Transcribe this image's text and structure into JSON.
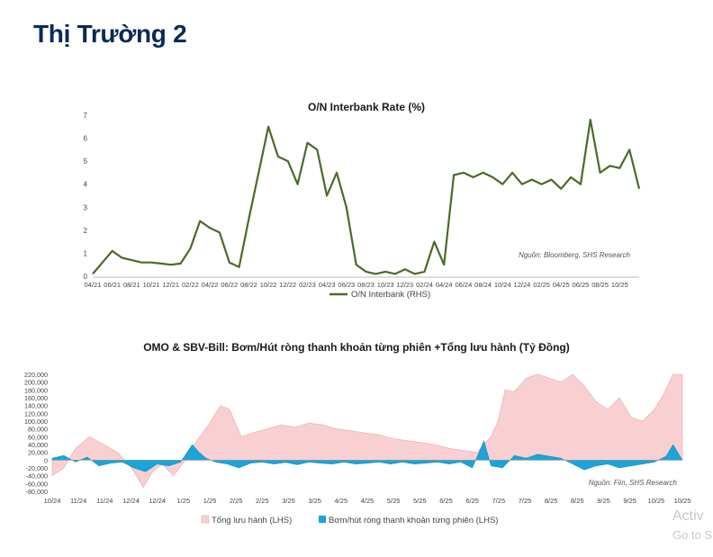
{
  "page": {
    "title": "Thị Trường 2"
  },
  "watermark": {
    "line1": "Activ",
    "line2": "Go to S"
  },
  "chart_data": [
    {
      "type": "line",
      "title": "O/N Interbank Rate (%)",
      "source": "Nguồn: Bloomberg, SHS Research",
      "ylim": [
        0,
        7
      ],
      "yticks": [
        "0",
        "1",
        "2",
        "3",
        "4",
        "5",
        "6",
        "7"
      ],
      "xlim": [
        0,
        56
      ],
      "x_tick_labels": [
        "04/21",
        "06/21",
        "08/21",
        "10/21",
        "12/21",
        "02/22",
        "04/22",
        "06/22",
        "08/22",
        "10/22",
        "12/22",
        "02/23",
        "04/23",
        "06/23",
        "08/23",
        "10/23",
        "12/23",
        "02/24",
        "04/24",
        "06/24",
        "08/24",
        "10/24",
        "12/24",
        "02/25",
        "04/25",
        "06/25",
        "08/25",
        "10/25"
      ],
      "x_tick_positions": [
        0,
        2,
        4,
        6,
        8,
        10,
        12,
        14,
        16,
        18,
        20,
        22,
        24,
        26,
        28,
        30,
        32,
        34,
        36,
        38,
        40,
        42,
        44,
        46,
        48,
        50,
        52,
        54
      ],
      "series": [
        {
          "name": "O/N Interbank (RHS)",
          "color": "#4a6b2a",
          "points": [
            [
              0,
              0.1
            ],
            [
              1,
              0.6
            ],
            [
              2,
              1.1
            ],
            [
              3,
              0.8
            ],
            [
              4,
              0.7
            ],
            [
              5,
              0.6
            ],
            [
              6,
              0.6
            ],
            [
              7,
              0.55
            ],
            [
              8,
              0.5
            ],
            [
              9,
              0.55
            ],
            [
              10,
              1.2
            ],
            [
              11,
              2.4
            ],
            [
              12,
              2.1
            ],
            [
              13,
              1.9
            ],
            [
              14,
              0.6
            ],
            [
              15,
              0.4
            ],
            [
              16,
              2.5
            ],
            [
              17,
              4.5
            ],
            [
              18,
              6.5
            ],
            [
              19,
              5.2
            ],
            [
              20,
              5.0
            ],
            [
              21,
              4.0
            ],
            [
              22,
              5.8
            ],
            [
              23,
              5.5
            ],
            [
              24,
              3.5
            ],
            [
              25,
              4.5
            ],
            [
              26,
              3.0
            ],
            [
              27,
              0.5
            ],
            [
              28,
              0.2
            ],
            [
              29,
              0.1
            ],
            [
              30,
              0.2
            ],
            [
              31,
              0.1
            ],
            [
              32,
              0.3
            ],
            [
              33,
              0.1
            ],
            [
              34,
              0.2
            ],
            [
              35,
              1.5
            ],
            [
              36,
              0.5
            ],
            [
              37,
              4.4
            ],
            [
              38,
              4.5
            ],
            [
              39,
              4.3
            ],
            [
              40,
              4.5
            ],
            [
              41,
              4.3
            ],
            [
              42,
              4.0
            ],
            [
              43,
              4.5
            ],
            [
              44,
              4.0
            ],
            [
              45,
              4.2
            ],
            [
              46,
              4.0
            ],
            [
              47,
              4.2
            ],
            [
              48,
              3.8
            ],
            [
              49,
              4.3
            ],
            [
              50,
              4.0
            ],
            [
              51,
              6.8
            ],
            [
              52,
              4.5
            ],
            [
              53,
              4.8
            ],
            [
              54,
              4.7
            ],
            [
              55,
              5.5
            ],
            [
              56,
              3.8
            ]
          ]
        }
      ]
    },
    {
      "type": "area",
      "title": "OMO & SBV-Bill: Bơm/Hút ròng thanh khoản từng phiên +Tổng lưu hành (Tỷ Đồng)",
      "source": "Nguồn: Fiin, SHS Research",
      "ylim": [
        -80000,
        220000
      ],
      "yticks": [
        "-80,000",
        "-60,000",
        "-40,000",
        "-20,000",
        "0",
        "20,000",
        "40,000",
        "60,000",
        "80,000",
        "100,000",
        "120,000",
        "140,000",
        "160,000",
        "180,000",
        "200,000",
        "220,000"
      ],
      "xlim": [
        0,
        27
      ],
      "x_tick_labels": [
        "10/24",
        "11/24",
        "11/24",
        "12/24",
        "12/24",
        "1/25",
        "1/25",
        "2/25",
        "2/25",
        "3/25",
        "3/25",
        "4/25",
        "4/25",
        "5/25",
        "5/25",
        "6/25",
        "6/25",
        "7/25",
        "7/25",
        "8/25",
        "8/25",
        "9/25",
        "9/25",
        "10/25",
        "10/25"
      ],
      "x_tick_positions": [
        0,
        1.125,
        2.25,
        3.375,
        4.5,
        5.625,
        6.75,
        7.875,
        9,
        10.125,
        11.25,
        12.375,
        13.5,
        14.625,
        15.75,
        16.875,
        18,
        19.125,
        20.25,
        21.375,
        22.5,
        23.625,
        24.75,
        25.875,
        27
      ],
      "series": [
        {
          "name": "Tổng lưu hành (LHS)",
          "color": "#f8d0d2",
          "edge": "#eaa6aa",
          "points": [
            [
              0,
              -40000
            ],
            [
              0.5,
              -20000
            ],
            [
              1,
              30000
            ],
            [
              1.6,
              60000
            ],
            [
              2.2,
              40000
            ],
            [
              2.8,
              20000
            ],
            [
              3.4,
              -20000
            ],
            [
              3.9,
              -70000
            ],
            [
              4.3,
              -30000
            ],
            [
              4.7,
              -10000
            ],
            [
              5.2,
              -40000
            ],
            [
              5.7,
              0
            ],
            [
              6.2,
              50000
            ],
            [
              6.7,
              90000
            ],
            [
              7.2,
              140000
            ],
            [
              7.6,
              130000
            ],
            [
              8.1,
              60000
            ],
            [
              8.6,
              70000
            ],
            [
              9.2,
              80000
            ],
            [
              9.8,
              90000
            ],
            [
              10.4,
              85000
            ],
            [
              11,
              95000
            ],
            [
              11.6,
              90000
            ],
            [
              12.2,
              80000
            ],
            [
              12.8,
              75000
            ],
            [
              13.4,
              70000
            ],
            [
              14,
              65000
            ],
            [
              14.6,
              55000
            ],
            [
              15.2,
              50000
            ],
            [
              15.8,
              45000
            ],
            [
              16.4,
              40000
            ],
            [
              17,
              30000
            ],
            [
              17.6,
              25000
            ],
            [
              18.2,
              20000
            ],
            [
              18.5,
              40000
            ],
            [
              18.8,
              60000
            ],
            [
              19.1,
              100000
            ],
            [
              19.4,
              180000
            ],
            [
              19.8,
              175000
            ],
            [
              20.3,
              210000
            ],
            [
              20.8,
              220000
            ],
            [
              21.3,
              210000
            ],
            [
              21.8,
              200000
            ],
            [
              22.3,
              220000
            ],
            [
              22.8,
              190000
            ],
            [
              23.3,
              150000
            ],
            [
              23.8,
              130000
            ],
            [
              24.3,
              160000
            ],
            [
              24.8,
              110000
            ],
            [
              25.3,
              100000
            ],
            [
              25.8,
              130000
            ],
            [
              26.2,
              170000
            ],
            [
              26.6,
              220000
            ],
            [
              27,
              230000
            ]
          ]
        },
        {
          "name": "Bơm/hút ròng thanh khoản từng phiên (LHS)",
          "color": "#1ba4d8",
          "points": [
            [
              0,
              5000
            ],
            [
              0.5,
              12000
            ],
            [
              1,
              -5000
            ],
            [
              1.5,
              8000
            ],
            [
              2,
              -15000
            ],
            [
              2.5,
              -8000
            ],
            [
              3,
              -5000
            ],
            [
              3.5,
              -20000
            ],
            [
              4,
              -30000
            ],
            [
              4.5,
              -10000
            ],
            [
              5,
              -15000
            ],
            [
              5.5,
              -5000
            ],
            [
              6,
              40000
            ],
            [
              6.3,
              20000
            ],
            [
              6.6,
              5000
            ],
            [
              7,
              -5000
            ],
            [
              7.5,
              -10000
            ],
            [
              8,
              -20000
            ],
            [
              8.5,
              -8000
            ],
            [
              9,
              -5000
            ],
            [
              9.5,
              -10000
            ],
            [
              10,
              -6000
            ],
            [
              10.5,
              -12000
            ],
            [
              11,
              -5000
            ],
            [
              11.5,
              -8000
            ],
            [
              12,
              -10000
            ],
            [
              12.5,
              -5000
            ],
            [
              13,
              -10000
            ],
            [
              13.5,
              -8000
            ],
            [
              14,
              -5000
            ],
            [
              14.5,
              -10000
            ],
            [
              15,
              -5000
            ],
            [
              15.5,
              -10000
            ],
            [
              16,
              -8000
            ],
            [
              16.5,
              -5000
            ],
            [
              17,
              -10000
            ],
            [
              17.5,
              -5000
            ],
            [
              18,
              -20000
            ],
            [
              18.5,
              50000
            ],
            [
              18.8,
              -15000
            ],
            [
              19.3,
              -20000
            ],
            [
              19.8,
              12000
            ],
            [
              20.3,
              5000
            ],
            [
              20.8,
              15000
            ],
            [
              21.3,
              10000
            ],
            [
              21.8,
              5000
            ],
            [
              22.3,
              -10000
            ],
            [
              22.8,
              -25000
            ],
            [
              23.3,
              -15000
            ],
            [
              23.8,
              -10000
            ],
            [
              24.3,
              -20000
            ],
            [
              24.8,
              -15000
            ],
            [
              25.3,
              -10000
            ],
            [
              25.8,
              -5000
            ],
            [
              26.3,
              10000
            ],
            [
              26.6,
              40000
            ],
            [
              27,
              0
            ]
          ]
        }
      ]
    }
  ]
}
